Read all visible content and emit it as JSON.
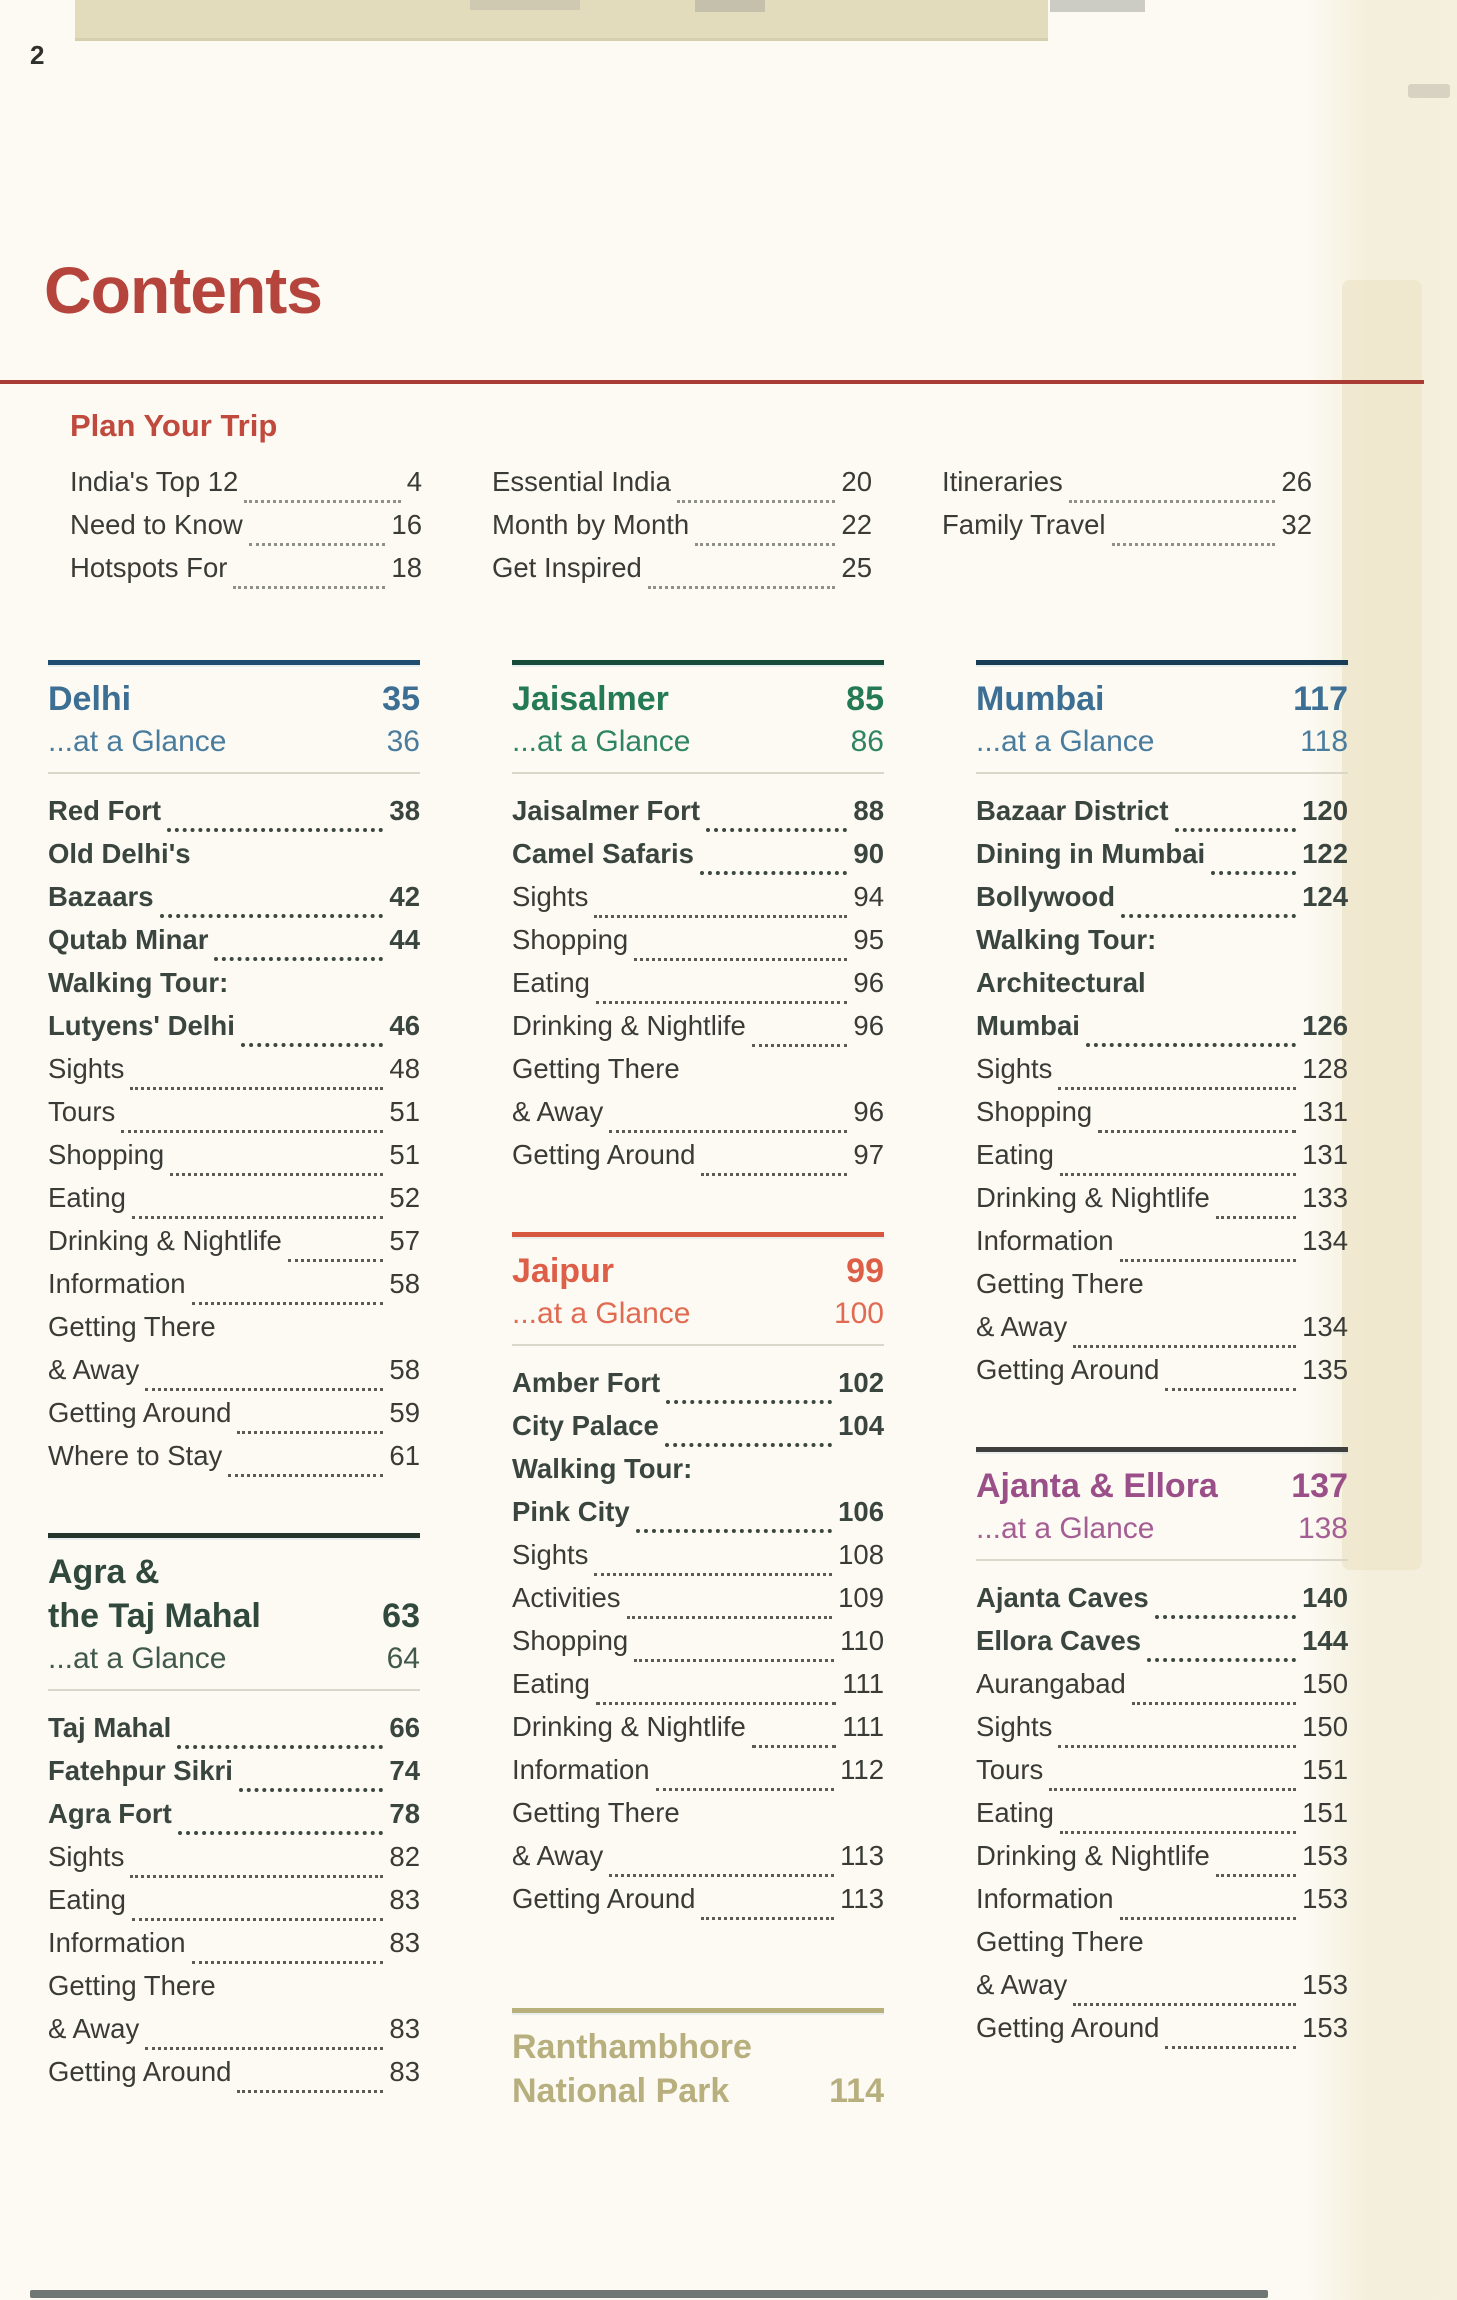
{
  "page_number": "2",
  "title": "Contents",
  "plan": {
    "heading": "Plan Your Trip",
    "columns": [
      [
        {
          "label": "India's Top 12",
          "page": "4"
        },
        {
          "label": "Need to Know",
          "page": "16"
        },
        {
          "label": "Hotspots For",
          "page": "18"
        }
      ],
      [
        {
          "label": "Essential India",
          "page": "20"
        },
        {
          "label": "Month by Month",
          "page": "22"
        },
        {
          "label": "Get Inspired",
          "page": "25"
        }
      ],
      [
        {
          "label": "Itineraries",
          "page": "26"
        },
        {
          "label": "Family Travel",
          "page": "32"
        }
      ]
    ]
  },
  "colors": {
    "title_red": "#b5443c",
    "rule_red": "#a93c34",
    "entry_regular": "#3a3b36",
    "entry_bold": "#39453e"
  },
  "chapter_columns": [
    [
      {
        "name": "delhi",
        "title_lines": [
          "Delhi"
        ],
        "page": "35",
        "glance": "...at a Glance",
        "glance_page": "36",
        "accent": "#3c6f93",
        "glance_color": "#4a7c9e",
        "rule": "#1e4d70",
        "entries": [
          {
            "label": "Red Fort",
            "page": "38",
            "bold": true
          },
          {
            "label": "Old Delhi's",
            "bold": true
          },
          {
            "label": "Bazaars",
            "page": "42",
            "bold": true
          },
          {
            "label": "Qutab Minar",
            "page": "44",
            "bold": true
          },
          {
            "label": "Walking Tour:",
            "bold": true
          },
          {
            "label": "Lutyens' Delhi",
            "page": "46",
            "bold": true
          },
          {
            "label": "Sights",
            "page": "48"
          },
          {
            "label": "Tours",
            "page": "51"
          },
          {
            "label": "Shopping",
            "page": "51"
          },
          {
            "label": "Eating",
            "page": "52"
          },
          {
            "label": "Drinking & Nightlife",
            "page": "57"
          },
          {
            "label": "Information",
            "page": "58"
          },
          {
            "label": "Getting There"
          },
          {
            "label": "& Away",
            "page": "58"
          },
          {
            "label": "Getting Around",
            "page": "59"
          },
          {
            "label": "Where to Stay",
            "page": "61"
          }
        ]
      },
      {
        "name": "agra",
        "title_lines": [
          "Agra &",
          "the Taj Mahal"
        ],
        "page": "63",
        "glance": "...at a Glance",
        "glance_page": "64",
        "accent": "#31493d",
        "glance_color": "#41594c",
        "rule": "#26352c",
        "entries": [
          {
            "label": "Taj Mahal",
            "page": "66",
            "bold": true
          },
          {
            "label": "Fatehpur Sikri",
            "page": "74",
            "bold": true
          },
          {
            "label": "Agra Fort",
            "page": "78",
            "bold": true
          },
          {
            "label": "Sights",
            "page": "82"
          },
          {
            "label": "Eating",
            "page": "83"
          },
          {
            "label": "Information",
            "page": "83"
          },
          {
            "label": "Getting There"
          },
          {
            "label": "& Away",
            "page": "83"
          },
          {
            "label": "Getting Around",
            "page": "83"
          }
        ]
      }
    ],
    [
      {
        "name": "jaisalmer",
        "title_lines": [
          "Jaisalmer"
        ],
        "page": "85",
        "glance": "...at a Glance",
        "glance_page": "86",
        "accent": "#247a56",
        "glance_color": "#2f8563",
        "rule": "#174a38",
        "entries": [
          {
            "label": "Jaisalmer Fort",
            "page": "88",
            "bold": true
          },
          {
            "label": "Camel Safaris",
            "page": "90",
            "bold": true
          },
          {
            "label": "Sights",
            "page": "94"
          },
          {
            "label": "Shopping",
            "page": "95"
          },
          {
            "label": "Eating",
            "page": "96"
          },
          {
            "label": "Drinking & Nightlife",
            "page": "96"
          },
          {
            "label": "Getting There"
          },
          {
            "label": "& Away",
            "page": "96"
          },
          {
            "label": "Getting Around",
            "page": "97"
          }
        ]
      },
      {
        "name": "jaipur",
        "title_lines": [
          "Jaipur"
        ],
        "page": "99",
        "glance": "...at a Glance",
        "glance_page": "100",
        "accent": "#dd5f47",
        "glance_color": "#e06a52",
        "rule": "#d8573f",
        "entries": [
          {
            "label": "Amber Fort",
            "page": "102",
            "bold": true
          },
          {
            "label": "City Palace",
            "page": "104",
            "bold": true
          },
          {
            "label": "Walking Tour:",
            "bold": true
          },
          {
            "label": "Pink City",
            "page": "106",
            "bold": true
          },
          {
            "label": "Sights",
            "page": "108"
          },
          {
            "label": "Activities",
            "page": "109"
          },
          {
            "label": "Shopping",
            "page": "110"
          },
          {
            "label": "Eating",
            "page": "111"
          },
          {
            "label": "Drinking & Nightlife",
            "page": "111"
          },
          {
            "label": "Information",
            "page": "112"
          },
          {
            "label": "Getting There"
          },
          {
            "label": "& Away",
            "page": "113"
          },
          {
            "label": "Getting Around",
            "page": "113"
          }
        ]
      },
      {
        "name": "ranthambhore",
        "title_lines": [
          "Ranthambhore",
          "National Park"
        ],
        "page": "114",
        "accent": "#b2a973",
        "glance_color": "#b2a973",
        "rule": "#b8b07a",
        "muted": true,
        "entries": []
      }
    ],
    [
      {
        "name": "mumbai",
        "title_lines": [
          "Mumbai"
        ],
        "page": "117",
        "glance": "...at a Glance",
        "glance_page": "118",
        "accent": "#3c6f93",
        "glance_color": "#4a7c9e",
        "rule": "#173c55",
        "entries": [
          {
            "label": "Bazaar District",
            "page": "120",
            "bold": true
          },
          {
            "label": "Dining in Mumbai",
            "page": "122",
            "bold": true
          },
          {
            "label": "Bollywood",
            "page": "124",
            "bold": true
          },
          {
            "label": "Walking Tour:",
            "bold": true
          },
          {
            "label": "Architectural",
            "bold": true
          },
          {
            "label": "Mumbai",
            "page": "126",
            "bold": true
          },
          {
            "label": "Sights",
            "page": "128"
          },
          {
            "label": "Shopping",
            "page": "131"
          },
          {
            "label": "Eating",
            "page": "131"
          },
          {
            "label": "Drinking & Nightlife",
            "page": "133"
          },
          {
            "label": "Information",
            "page": "134"
          },
          {
            "label": "Getting There"
          },
          {
            "label": "& Away",
            "page": "134"
          },
          {
            "label": "Getting Around",
            "page": "135"
          }
        ]
      },
      {
        "name": "ajanta-ellora",
        "title_lines": [
          "Ajanta & Ellora"
        ],
        "page": "137",
        "glance": "...at a Glance",
        "glance_page": "138",
        "accent": "#9b4f89",
        "glance_color": "#a55e93",
        "rule": "#3f3f3d",
        "entries": [
          {
            "label": "Ajanta Caves",
            "page": "140",
            "bold": true
          },
          {
            "label": "Ellora Caves",
            "page": "144",
            "bold": true
          },
          {
            "label": "Aurangabad",
            "page": "150"
          },
          {
            "label": "Sights",
            "page": "150"
          },
          {
            "label": "Tours",
            "page": "151"
          },
          {
            "label": "Eating",
            "page": "151"
          },
          {
            "label": "Drinking & Nightlife",
            "page": "153"
          },
          {
            "label": "Information",
            "page": "153"
          },
          {
            "label": "Getting There"
          },
          {
            "label": "& Away",
            "page": "153"
          },
          {
            "label": "Getting Around",
            "page": "153"
          }
        ]
      }
    ]
  ]
}
